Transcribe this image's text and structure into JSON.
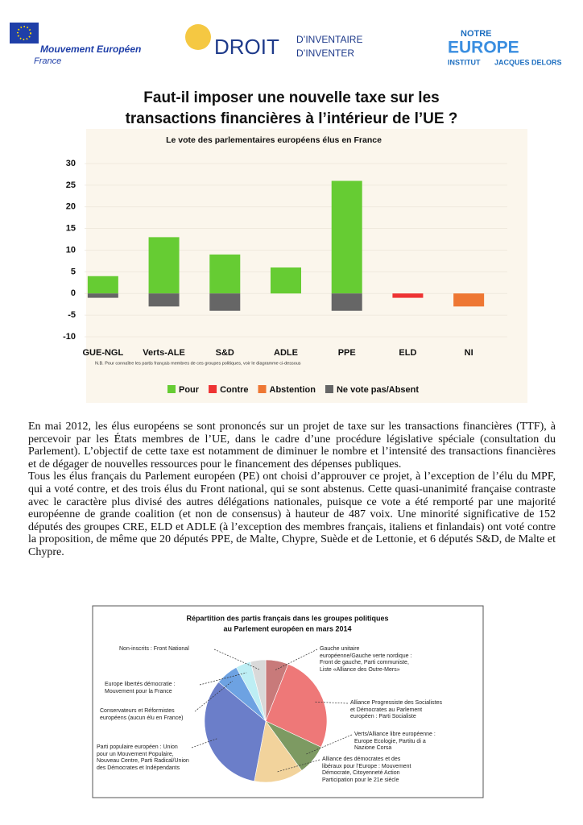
{
  "header": {
    "logo_left": [
      "Mouvement Européen",
      "France"
    ],
    "logo_middle": [
      "DROIT",
      "D’INVENTAIRE",
      "D’INVENTER"
    ],
    "logo_right": [
      "NOTRE",
      "EUROPE",
      "INSTITUT",
      "JACQUES DELORS"
    ]
  },
  "title": [
    "Faut-il imposer une nouvelle taxe sur les",
    "transactions financières à l’intérieur de l’UE ?"
  ],
  "chart_data": [
    {
      "type": "bar",
      "stacked": true,
      "title": "Le vote des parlementaires européens élus en France",
      "note": "N.B. Pour connaître les partis français membres de ces groupes politiques, voir le diagramme ci-dessous",
      "categories": [
        "GUE-NGL",
        "Verts-ALE",
        "S&D",
        "ADLE",
        "PPE",
        "ELD",
        "NI"
      ],
      "series": [
        {
          "name": "Pour",
          "color": "#66cc33",
          "values": [
            4,
            13,
            9,
            6,
            26,
            0,
            0
          ]
        },
        {
          "name": "Contre",
          "color": "#ee3333",
          "values": [
            0,
            0,
            0,
            0,
            0,
            -1,
            0
          ]
        },
        {
          "name": "Abstention",
          "color": "#ee7733",
          "values": [
            0,
            0,
            0,
            0,
            0,
            0,
            -3
          ]
        },
        {
          "name": "Ne vote pas/Absent",
          "color": "#666666",
          "values": [
            -1,
            -3,
            -4,
            0,
            -4,
            0,
            0
          ]
        }
      ],
      "ylim": [
        -10,
        30
      ],
      "yticks": [
        -10,
        -5,
        0,
        5,
        10,
        15,
        20,
        25,
        30
      ],
      "grid": true,
      "legend": "bottom"
    },
    {
      "type": "pie",
      "title": [
        "Répartition des partis français dans les groupes politiques",
        "au Parlement européen en mars 2014"
      ],
      "categories": [
        "Gauche unitaire européenne/Gauche verte nordique : Front de gauche, Parti communiste, Liste «Alliance des Outre-Mers»",
        "Alliance Progressiste des Socialistes et Démocrates au Parlement européen : Parti Socialiste",
        "Verts/Alliance libre européenne : Europe Ecologie, Partitu di a Nazione Corsa",
        "Alliance des démocrates et des libéraux pour l’Europe : Mouvement Démocrate, Citoyenneté Action Participation pour le 21e siècle",
        "Parti populaire européen : Union pour un Mouvement Populaire, Nouveau Centre, Parti Radical/Union des Démocrates et Indépendants",
        "Conservateurs et Réformistes européens (aucun élu en France)",
        "Europe libertés démocratie : Mouvement pour la France",
        "Non-inscrits : Front National"
      ],
      "values": [
        6,
        26,
        8,
        13,
        33,
        6,
        4,
        4
      ],
      "colors": [
        "#c87a7a",
        "#ee7878",
        "#7d9a62",
        "#f2d39c",
        "#6b7ec9",
        "#6da2e2",
        "#bdeef4",
        "#d9d9d9"
      ]
    }
  ],
  "body": [
    "En mai 2012, les élus européens se sont prononcés sur un projet de taxe sur les transactions financières (TTF), à percevoir par les États membres de l’UE, dans le cadre d’une procédure législative spéciale (consultation du Parlement). L’objectif de cette taxe est notamment de diminuer le nombre et l’intensité des transactions financières et de dégager de nouvelles ressources pour le financement des dépenses publiques.",
    "Tous les élus français du Parlement européen (PE) ont choisi d’approuver ce projet, à l’exception de l’élu du MPF, qui a voté contre, et des trois élus du Front national, qui se sont abstenus. Cette quasi-unanimité française contraste avec le caractère plus divisé des autres délégations nationales, puisque ce vote a été remporté par une majorité européenne de grande coalition (et non de consensus) à hauteur de 487 voix. Une minorité significative de 152 députés des groupes CRE, ELD et ADLE (à l’exception des membres français, italiens et finlandais) ont voté contre la proposition, de même que 20 députés PPE, de Malte, Chypre, Suède et de Lettonie, et 6 députés S&D, de Malte et Chypre."
  ]
}
